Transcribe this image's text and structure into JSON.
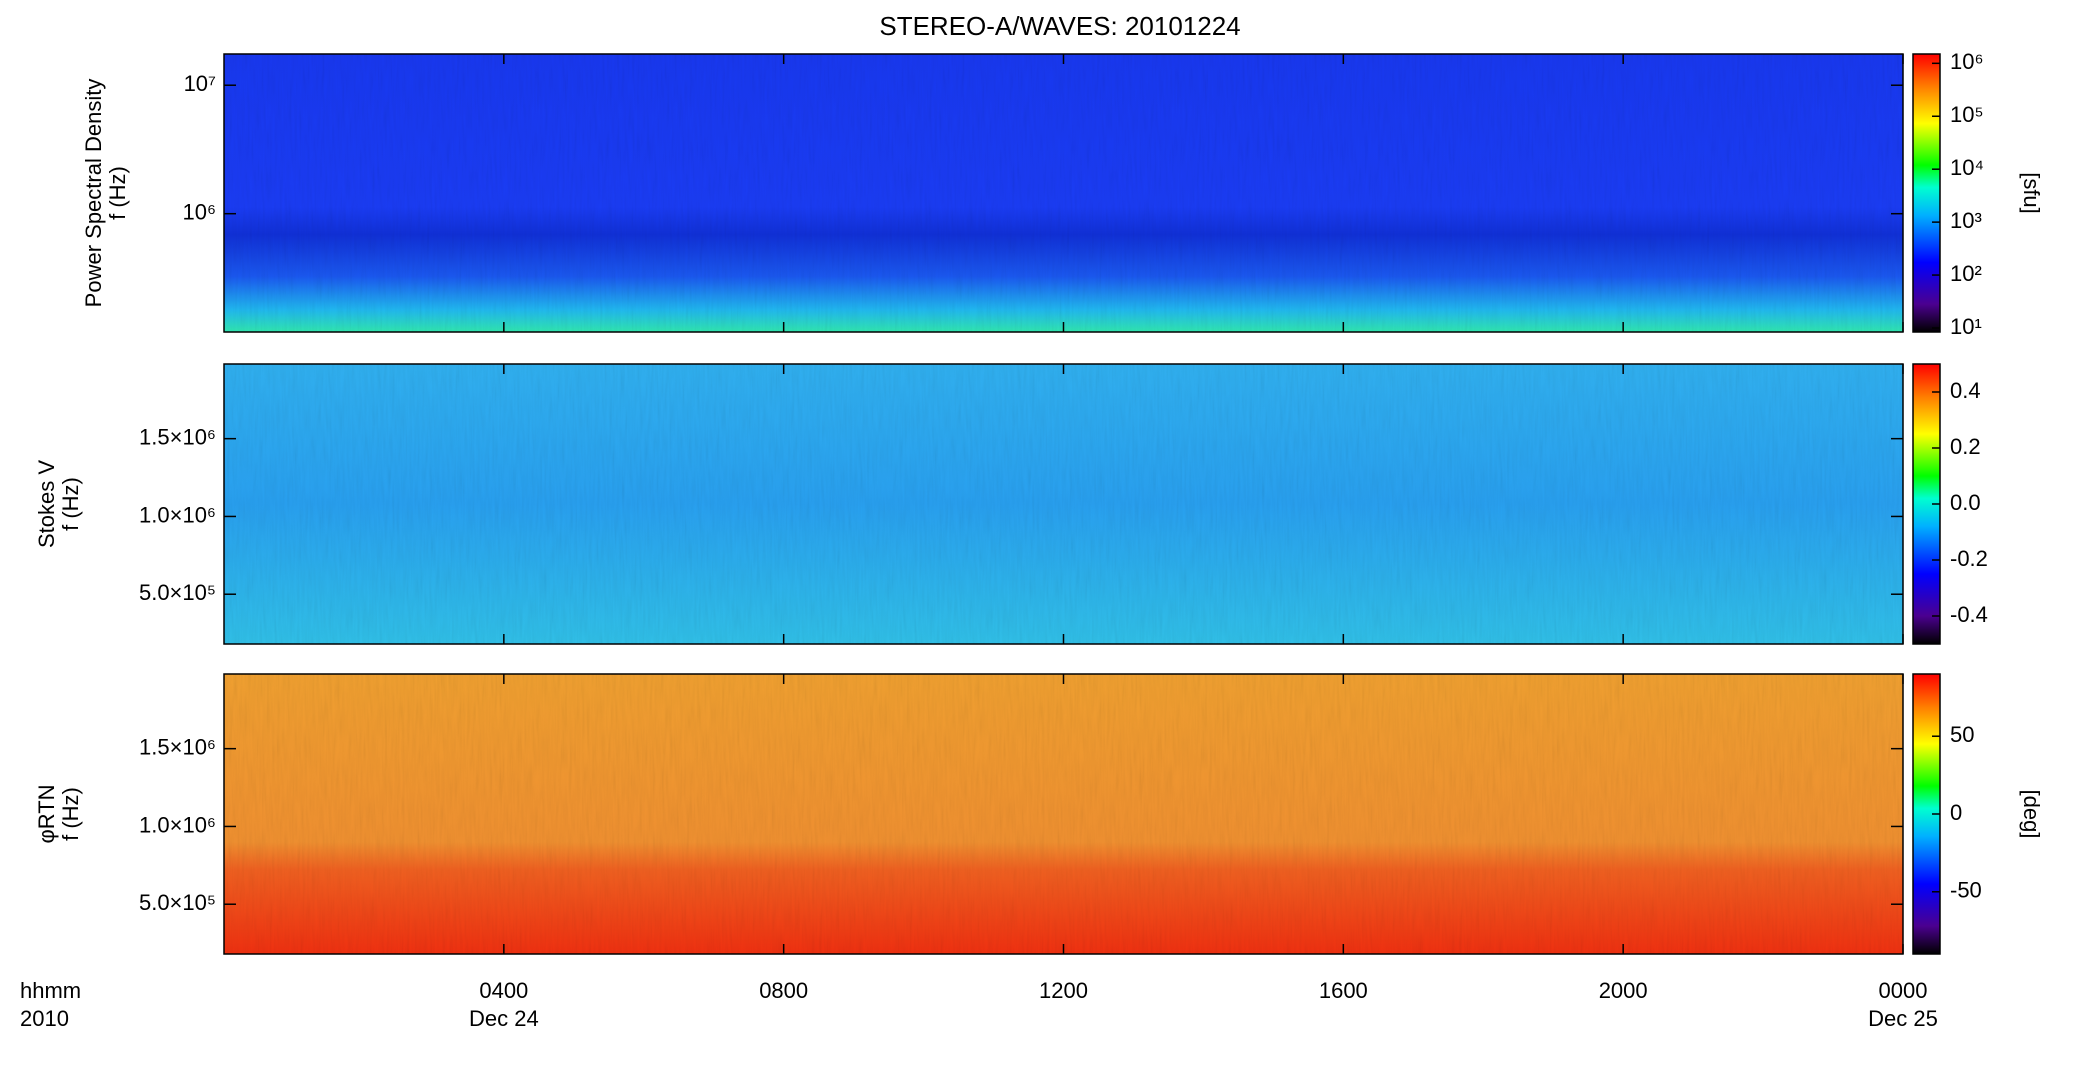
{
  "title": "STEREO-A/WAVES: 20101224",
  "x_axis": {
    "label_lines": [
      "hhmm",
      "2010"
    ],
    "xlim": [
      0,
      24
    ],
    "xticks": [
      {
        "value": 4,
        "label": "0400",
        "date": "Dec 24"
      },
      {
        "value": 8,
        "label": "0800"
      },
      {
        "value": 12,
        "label": "1200"
      },
      {
        "value": 16,
        "label": "1600"
      },
      {
        "value": 20,
        "label": "2000"
      },
      {
        "value": 24,
        "label": "0000",
        "date": "Dec 25"
      }
    ]
  },
  "chart_data": [
    {
      "type": "heatmap",
      "ylabel_lines": [
        "Power Spectral Density",
        "f (Hz)"
      ],
      "ylog": true,
      "ylim": [
        120000,
        17500000
      ],
      "yticks": [
        {
          "value": 1000000,
          "label": "10⁶"
        },
        {
          "value": 10000000,
          "label": "10⁷"
        }
      ],
      "colorbar": {
        "colormap": "rainbow",
        "log": true,
        "lim": [
          8.4,
          1500000
        ],
        "label": "[sfu]",
        "ticks": [
          {
            "value": 10,
            "label": "10¹"
          },
          {
            "value": 100,
            "label": "10²"
          },
          {
            "value": 1000,
            "label": "10³"
          },
          {
            "value": 10000,
            "label": "10⁴"
          },
          {
            "value": 100000,
            "label": "10⁵"
          },
          {
            "value": 1000000,
            "label": "10⁶"
          }
        ]
      }
    },
    {
      "type": "heatmap",
      "ylabel_lines": [
        "Stokes V",
        "f (Hz)"
      ],
      "ylog": false,
      "ylim": [
        180000,
        1980000
      ],
      "yticks": [
        {
          "value": 500000,
          "label": "5.0×10⁵"
        },
        {
          "value": 1000000,
          "label": "1.0×10⁶"
        },
        {
          "value": 1500000,
          "label": "1.5×10⁶"
        }
      ],
      "colorbar": {
        "colormap": "rainbow",
        "log": false,
        "lim": [
          -0.5,
          0.5
        ],
        "ticks": [
          -0.4,
          -0.2,
          {
            "value": 0,
            "label": "0.0"
          },
          0.2,
          0.4
        ]
      }
    },
    {
      "type": "heatmap",
      "ylabel_lines": [
        "φRTN",
        "f (Hz)"
      ],
      "ylog": false,
      "ylim": [
        180000,
        1980000
      ],
      "yticks": [
        {
          "value": 500000,
          "label": "5.0×10⁵"
        },
        {
          "value": 1000000,
          "label": "1.0×10⁶"
        },
        {
          "value": 1500000,
          "label": "1.5×10⁶"
        }
      ],
      "colorbar": {
        "colormap": "rainbow",
        "log": false,
        "lim": [
          -90,
          90
        ],
        "label": "[deg]",
        "ticks": [
          -50,
          0,
          50
        ]
      }
    }
  ]
}
